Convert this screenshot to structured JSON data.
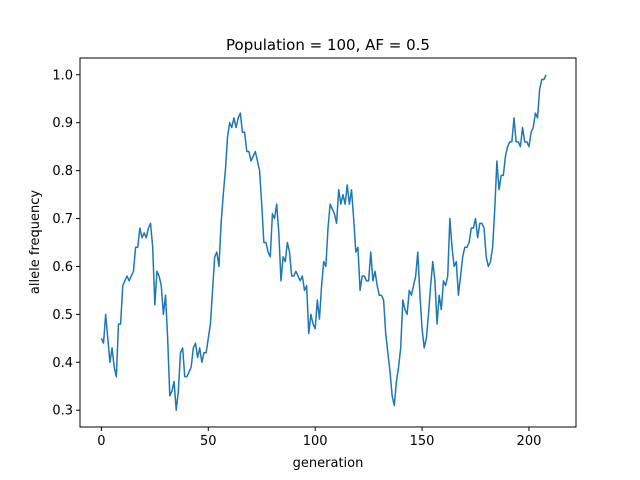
{
  "chart_data": {
    "type": "line",
    "title": "Population = 100, AF = 0.5",
    "xlabel": "generation",
    "ylabel": "allele frequency",
    "xlim": [
      -10,
      222
    ],
    "ylim": [
      0.265,
      1.035
    ],
    "xticks": [
      0,
      50,
      100,
      150,
      200
    ],
    "yticks": [
      0.3,
      0.4,
      0.5,
      0.6,
      0.7,
      0.8,
      0.9,
      1.0
    ],
    "xtick_labels": [
      "0",
      "50",
      "100",
      "150",
      "200"
    ],
    "ytick_labels": [
      "0.3",
      "0.4",
      "0.5",
      "0.6",
      "0.7",
      "0.8",
      "0.9",
      "1.0"
    ],
    "grid": false,
    "line_color": "#1f77b4",
    "series": [
      {
        "name": "allele frequency",
        "x_start": 0,
        "values": [
          0.45,
          0.44,
          0.5,
          0.45,
          0.4,
          0.43,
          0.39,
          0.37,
          0.48,
          0.48,
          0.56,
          0.57,
          0.58,
          0.57,
          0.58,
          0.59,
          0.64,
          0.64,
          0.68,
          0.66,
          0.67,
          0.66,
          0.68,
          0.69,
          0.64,
          0.52,
          0.59,
          0.58,
          0.56,
          0.5,
          0.54,
          0.45,
          0.33,
          0.34,
          0.36,
          0.3,
          0.34,
          0.42,
          0.43,
          0.37,
          0.37,
          0.38,
          0.39,
          0.43,
          0.44,
          0.41,
          0.43,
          0.4,
          0.42,
          0.42,
          0.45,
          0.48,
          0.55,
          0.62,
          0.63,
          0.6,
          0.69,
          0.75,
          0.8,
          0.87,
          0.9,
          0.89,
          0.91,
          0.89,
          0.91,
          0.92,
          0.88,
          0.88,
          0.84,
          0.84,
          0.82,
          0.83,
          0.84,
          0.82,
          0.8,
          0.73,
          0.65,
          0.65,
          0.63,
          0.62,
          0.71,
          0.7,
          0.73,
          0.67,
          0.57,
          0.62,
          0.61,
          0.65,
          0.63,
          0.58,
          0.58,
          0.59,
          0.58,
          0.57,
          0.58,
          0.55,
          0.56,
          0.46,
          0.5,
          0.48,
          0.47,
          0.53,
          0.49,
          0.56,
          0.61,
          0.6,
          0.68,
          0.73,
          0.72,
          0.71,
          0.69,
          0.76,
          0.73,
          0.75,
          0.73,
          0.77,
          0.73,
          0.76,
          0.7,
          0.63,
          0.64,
          0.55,
          0.58,
          0.58,
          0.57,
          0.57,
          0.63,
          0.57,
          0.59,
          0.56,
          0.54,
          0.54,
          0.53,
          0.46,
          0.42,
          0.38,
          0.33,
          0.31,
          0.36,
          0.39,
          0.43,
          0.53,
          0.51,
          0.5,
          0.55,
          0.54,
          0.56,
          0.58,
          0.63,
          0.54,
          0.47,
          0.43,
          0.45,
          0.5,
          0.56,
          0.61,
          0.57,
          0.48,
          0.54,
          0.51,
          0.57,
          0.56,
          0.58,
          0.7,
          0.64,
          0.6,
          0.61,
          0.54,
          0.58,
          0.62,
          0.64,
          0.64,
          0.65,
          0.68,
          0.68,
          0.7,
          0.66,
          0.69,
          0.69,
          0.68,
          0.62,
          0.6,
          0.61,
          0.64,
          0.72,
          0.82,
          0.76,
          0.79,
          0.79,
          0.83,
          0.85,
          0.86,
          0.86,
          0.91,
          0.86,
          0.86,
          0.85,
          0.89,
          0.86,
          0.86,
          0.85,
          0.88,
          0.89,
          0.92,
          0.91,
          0.97,
          0.99,
          0.99,
          1.0
        ]
      }
    ]
  }
}
